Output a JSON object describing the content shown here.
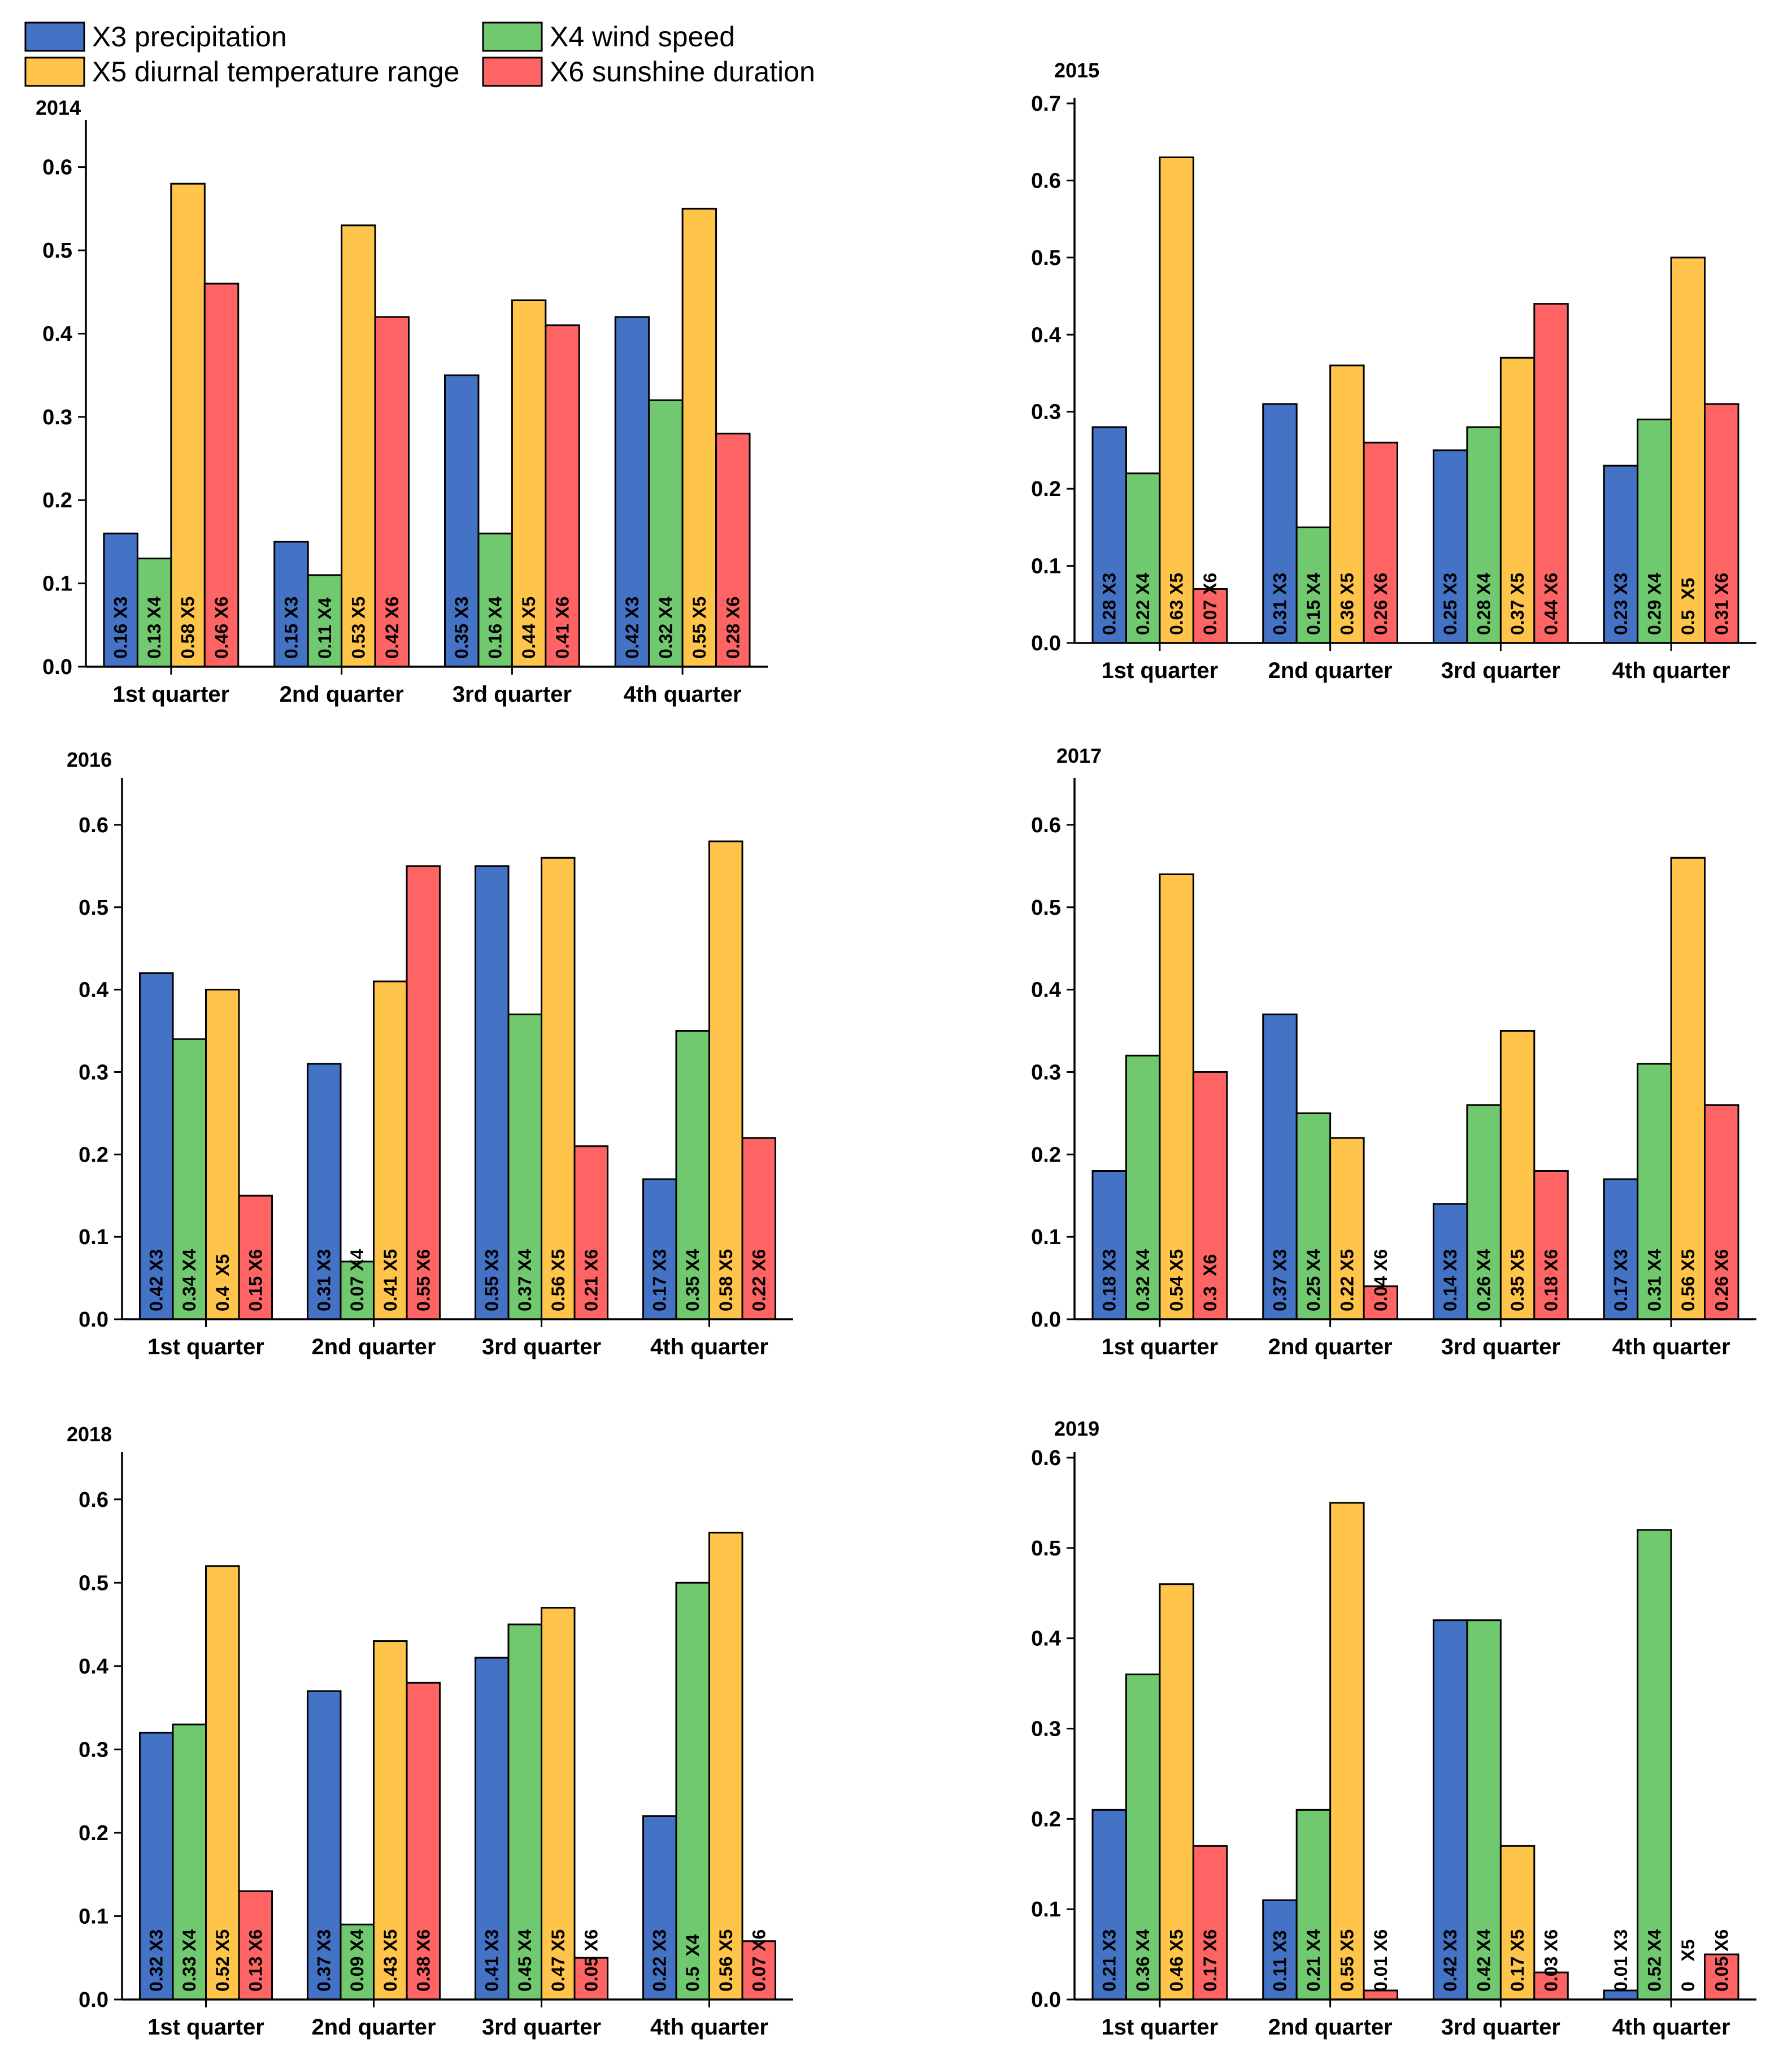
{
  "legend": [
    {
      "name": "X3 precipitation",
      "color": "#4472C4"
    },
    {
      "name": "X4 wind speed",
      "color": "#70C96F"
    },
    {
      "name": "X5 diurnal temperature range",
      "color": "#FFC54A"
    },
    {
      "name": "X6 sunshine duration",
      "color": "#FF6464"
    }
  ],
  "chart_data": [
    {
      "type": "bar",
      "title": "2014",
      "categories": [
        "1st quarter",
        "2nd quarter",
        "3rd quarter",
        "4th quarter"
      ],
      "ylim": [
        0,
        0.65
      ],
      "yticks": [
        "0.0",
        "0.1",
        "0.2",
        "0.3",
        "0.4",
        "0.5",
        "0.6"
      ],
      "series": [
        {
          "name": "X3",
          "values": [
            0.16,
            0.15,
            0.35,
            0.42
          ],
          "labels": [
            "0.16 X3",
            "0.15 X3",
            "0.35 X3",
            "0.42 X3"
          ]
        },
        {
          "name": "X4",
          "values": [
            0.13,
            0.11,
            0.16,
            0.32
          ],
          "labels": [
            "0.13 X4",
            "0.11 X4",
            "0.16 X4",
            "0.32 X4"
          ]
        },
        {
          "name": "X5",
          "values": [
            0.58,
            0.53,
            0.44,
            0.55
          ],
          "labels": [
            "0.58 X5",
            "0.53 X5",
            "0.44 X5",
            "0.55 X5"
          ]
        },
        {
          "name": "X6",
          "values": [
            0.46,
            0.42,
            0.41,
            0.28
          ],
          "labels": [
            "0.46 X6",
            "0.42 X6",
            "0.41 X6",
            "0.28 X6"
          ]
        }
      ]
    },
    {
      "type": "bar",
      "title": "2015",
      "categories": [
        "1st quarter",
        "2nd quarter",
        "3rd quarter",
        "4th quarter"
      ],
      "ylim": [
        0,
        0.7
      ],
      "yticks": [
        "0.0",
        "0.1",
        "0.2",
        "0.3",
        "0.4",
        "0.5",
        "0.6",
        "0.7"
      ],
      "series": [
        {
          "name": "X3",
          "values": [
            0.28,
            0.31,
            0.25,
            0.23
          ],
          "labels": [
            "0.28 X3",
            "0.31 X3",
            "0.25 X3",
            "0.23 X3"
          ]
        },
        {
          "name": "X4",
          "values": [
            0.22,
            0.15,
            0.28,
            0.29
          ],
          "labels": [
            "0.22 X4",
            "0.15 X4",
            "0.28 X4",
            "0.29 X4"
          ]
        },
        {
          "name": "X5",
          "values": [
            0.63,
            0.36,
            0.37,
            0.5
          ],
          "labels": [
            "0.63 X5",
            "0.36 X5",
            "0.37 X5",
            "0.5  X5"
          ]
        },
        {
          "name": "X6",
          "values": [
            0.07,
            0.26,
            0.44,
            0.31
          ],
          "labels": [
            "0.07 X6",
            "0.26 X6",
            "0.44 X6",
            "0.31 X6"
          ]
        }
      ]
    },
    {
      "type": "bar",
      "title": "2016",
      "categories": [
        "1st quarter",
        "2nd quarter",
        "3rd quarter",
        "4th quarter"
      ],
      "ylim": [
        0,
        0.65
      ],
      "yticks": [
        "0.0",
        "0.1",
        "0.2",
        "0.3",
        "0.4",
        "0.5",
        "0.6"
      ],
      "series": [
        {
          "name": "X3",
          "values": [
            0.42,
            0.31,
            0.55,
            0.17
          ],
          "labels": [
            "0.42 X3",
            "0.31 X3",
            "0.55 X3",
            "0.17 X3"
          ]
        },
        {
          "name": "X4",
          "values": [
            0.34,
            0.07,
            0.37,
            0.35
          ],
          "labels": [
            "0.34 X4",
            "0.07 X4",
            "0.37 X4",
            "0.35 X4"
          ]
        },
        {
          "name": "X5",
          "values": [
            0.4,
            0.41,
            0.56,
            0.58
          ],
          "labels": [
            "0.4  X5",
            "0.41 X5",
            "0.56 X5",
            "0.58 X5"
          ]
        },
        {
          "name": "X6",
          "values": [
            0.15,
            0.55,
            0.21,
            0.22
          ],
          "labels": [
            "0.15 X6",
            "0.55 X6",
            "0.21 X6",
            "0.22 X6"
          ]
        }
      ]
    },
    {
      "type": "bar",
      "title": "2017",
      "categories": [
        "1st quarter",
        "2nd quarter",
        "3rd quarter",
        "4th quarter"
      ],
      "ylim": [
        0,
        0.65
      ],
      "yticks": [
        "0.0",
        "0.1",
        "0.2",
        "0.3",
        "0.4",
        "0.5",
        "0.6"
      ],
      "series": [
        {
          "name": "X3",
          "values": [
            0.18,
            0.37,
            0.14,
            0.17
          ],
          "labels": [
            "0.18 X3",
            "0.37 X3",
            "0.14 X3",
            "0.17 X3"
          ]
        },
        {
          "name": "X4",
          "values": [
            0.32,
            0.25,
            0.26,
            0.31
          ],
          "labels": [
            "0.32 X4",
            "0.25 X4",
            "0.26 X4",
            "0.31 X4"
          ]
        },
        {
          "name": "X5",
          "values": [
            0.54,
            0.22,
            0.35,
            0.56
          ],
          "labels": [
            "0.54 X5",
            "0.22 X5",
            "0.35 X5",
            "0.56 X5"
          ]
        },
        {
          "name": "X6",
          "values": [
            0.3,
            0.04,
            0.18,
            0.26
          ],
          "labels": [
            "0.3  X6",
            "0.04 X6",
            "0.18 X6",
            "0.26 X6"
          ]
        }
      ]
    },
    {
      "type": "bar",
      "title": "2018",
      "categories": [
        "1st quarter",
        "2nd quarter",
        "3rd quarter",
        "4th quarter"
      ],
      "ylim": [
        0,
        0.65
      ],
      "yticks": [
        "0.0",
        "0.1",
        "0.2",
        "0.3",
        "0.4",
        "0.5",
        "0.6"
      ],
      "series": [
        {
          "name": "X3",
          "values": [
            0.32,
            0.37,
            0.41,
            0.22
          ],
          "labels": [
            "0.32 X3",
            "0.37 X3",
            "0.41 X3",
            "0.22 X3"
          ]
        },
        {
          "name": "X4",
          "values": [
            0.33,
            0.09,
            0.45,
            0.5
          ],
          "labels": [
            "0.33 X4",
            "0.09 X4",
            "0.45 X4",
            "0.5  X4"
          ]
        },
        {
          "name": "X5",
          "values": [
            0.52,
            0.43,
            0.47,
            0.56
          ],
          "labels": [
            "0.52 X5",
            "0.43 X5",
            "0.47 X5",
            "0.56 X5"
          ]
        },
        {
          "name": "X6",
          "values": [
            0.13,
            0.38,
            0.05,
            0.07
          ],
          "labels": [
            "0.13 X6",
            "0.38 X6",
            "0.05 X6",
            "0.07 X6"
          ]
        }
      ]
    },
    {
      "type": "bar",
      "title": "2019",
      "categories": [
        "1st quarter",
        "2nd quarter",
        "3rd quarter",
        "4th quarter"
      ],
      "ylim": [
        0,
        0.6
      ],
      "yticks": [
        "0.0",
        "0.1",
        "0.2",
        "0.3",
        "0.4",
        "0.5",
        "0.6"
      ],
      "series": [
        {
          "name": "X3",
          "values": [
            0.21,
            0.11,
            0.42,
            0.01
          ],
          "labels": [
            "0.21 X3",
            "0.11 X3",
            "0.42 X3",
            "0.01 X3"
          ]
        },
        {
          "name": "X4",
          "values": [
            0.36,
            0.21,
            0.42,
            0.52
          ],
          "labels": [
            "0.36 X4",
            "0.21 X4",
            "0.42 X4",
            "0.52 X4"
          ]
        },
        {
          "name": "X5",
          "values": [
            0.46,
            0.55,
            0.17,
            0
          ],
          "labels": [
            "0.46 X5",
            "0.55 X5",
            "0.17 X5",
            "0    X5"
          ]
        },
        {
          "name": "X6",
          "values": [
            0.17,
            0.01,
            0.03,
            0.05
          ],
          "labels": [
            "0.17 X6",
            "0.01 X6",
            "0.03 X6",
            "0.05 X6"
          ]
        }
      ]
    }
  ]
}
